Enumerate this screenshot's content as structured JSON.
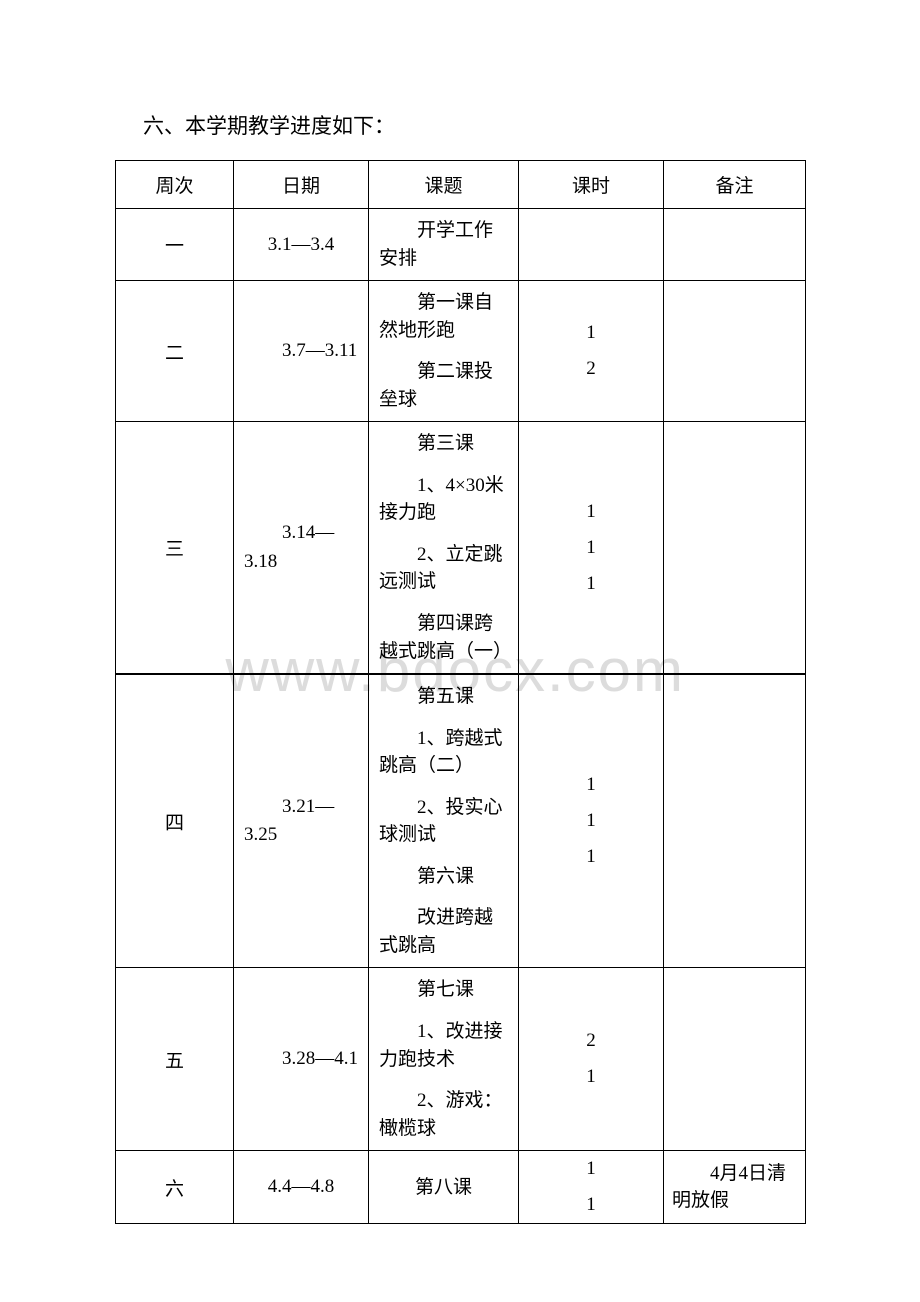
{
  "title": "六、本学期教学进度如下：",
  "headers": {
    "week": "周次",
    "date": "日期",
    "topic": "课题",
    "hours": "课时",
    "note": "备注"
  },
  "watermark": "www.bdocx.com",
  "rows": [
    {
      "week": "一",
      "date": "3.1—3.4",
      "date_centered": true,
      "topic_blocks": [
        {
          "lines": [
            "开学工作安排"
          ],
          "indent": true
        }
      ],
      "hours": [],
      "note": ""
    },
    {
      "week": "二",
      "date": "3.7—3.11",
      "date_centered": false,
      "topic_blocks": [
        {
          "lines": [
            "第一课自然地形跑"
          ],
          "indent": true
        },
        {
          "lines": [
            "第二课投垒球"
          ],
          "indent": true
        }
      ],
      "hours": [
        "1",
        "2"
      ],
      "note": ""
    },
    {
      "week": "三",
      "date": "3.14—3.18",
      "date_centered": false,
      "topic_blocks": [
        {
          "lines": [
            "第三课"
          ],
          "indent": true
        },
        {
          "lines": [
            "1、4×30米接力跑"
          ],
          "indent": true
        },
        {
          "lines": [
            "2、立定跳远测试"
          ],
          "indent": true
        },
        {
          "lines": [
            "第四课跨越式跳高（一）"
          ],
          "indent": true
        }
      ],
      "hours": [
        "1",
        "1",
        "1"
      ],
      "note": "",
      "watermark_after": true
    },
    {
      "week": "四",
      "date": "3.21—3.25",
      "date_centered": false,
      "topic_blocks": [
        {
          "lines": [
            "第五课"
          ],
          "indent": true
        },
        {
          "lines": [
            "1、跨越式跳高（二）"
          ],
          "indent": true
        },
        {
          "lines": [
            "2、投实心球测试"
          ],
          "indent": true
        },
        {
          "lines": [
            "第六课"
          ],
          "indent": true
        },
        {
          "lines": [
            "改进跨越式跳高"
          ],
          "indent": true
        }
      ],
      "hours": [
        "1",
        "1",
        "1"
      ],
      "note": ""
    },
    {
      "week": "五",
      "date": "3.28—4.1",
      "date_centered": false,
      "topic_blocks": [
        {
          "lines": [
            "第七课"
          ],
          "indent": true
        },
        {
          "lines": [
            "1、改进接力跑技术"
          ],
          "indent": true
        },
        {
          "lines": [
            "2、游戏：橄榄球"
          ],
          "indent": true
        }
      ],
      "hours": [
        "2",
        "1"
      ],
      "note": ""
    },
    {
      "week": "六",
      "date": "4.4—4.8",
      "date_centered": true,
      "topic_blocks": [
        {
          "lines": [
            "第八课"
          ],
          "indent": false,
          "center": true
        }
      ],
      "hours": [
        "1",
        "1"
      ],
      "note": "4月4日清明放假"
    }
  ],
  "colors": {
    "text": "#000000",
    "background": "#ffffff",
    "border": "#000000",
    "watermark": "#dcdcdc"
  },
  "font_sizes": {
    "title": 21,
    "body": 19,
    "watermark": 60
  }
}
